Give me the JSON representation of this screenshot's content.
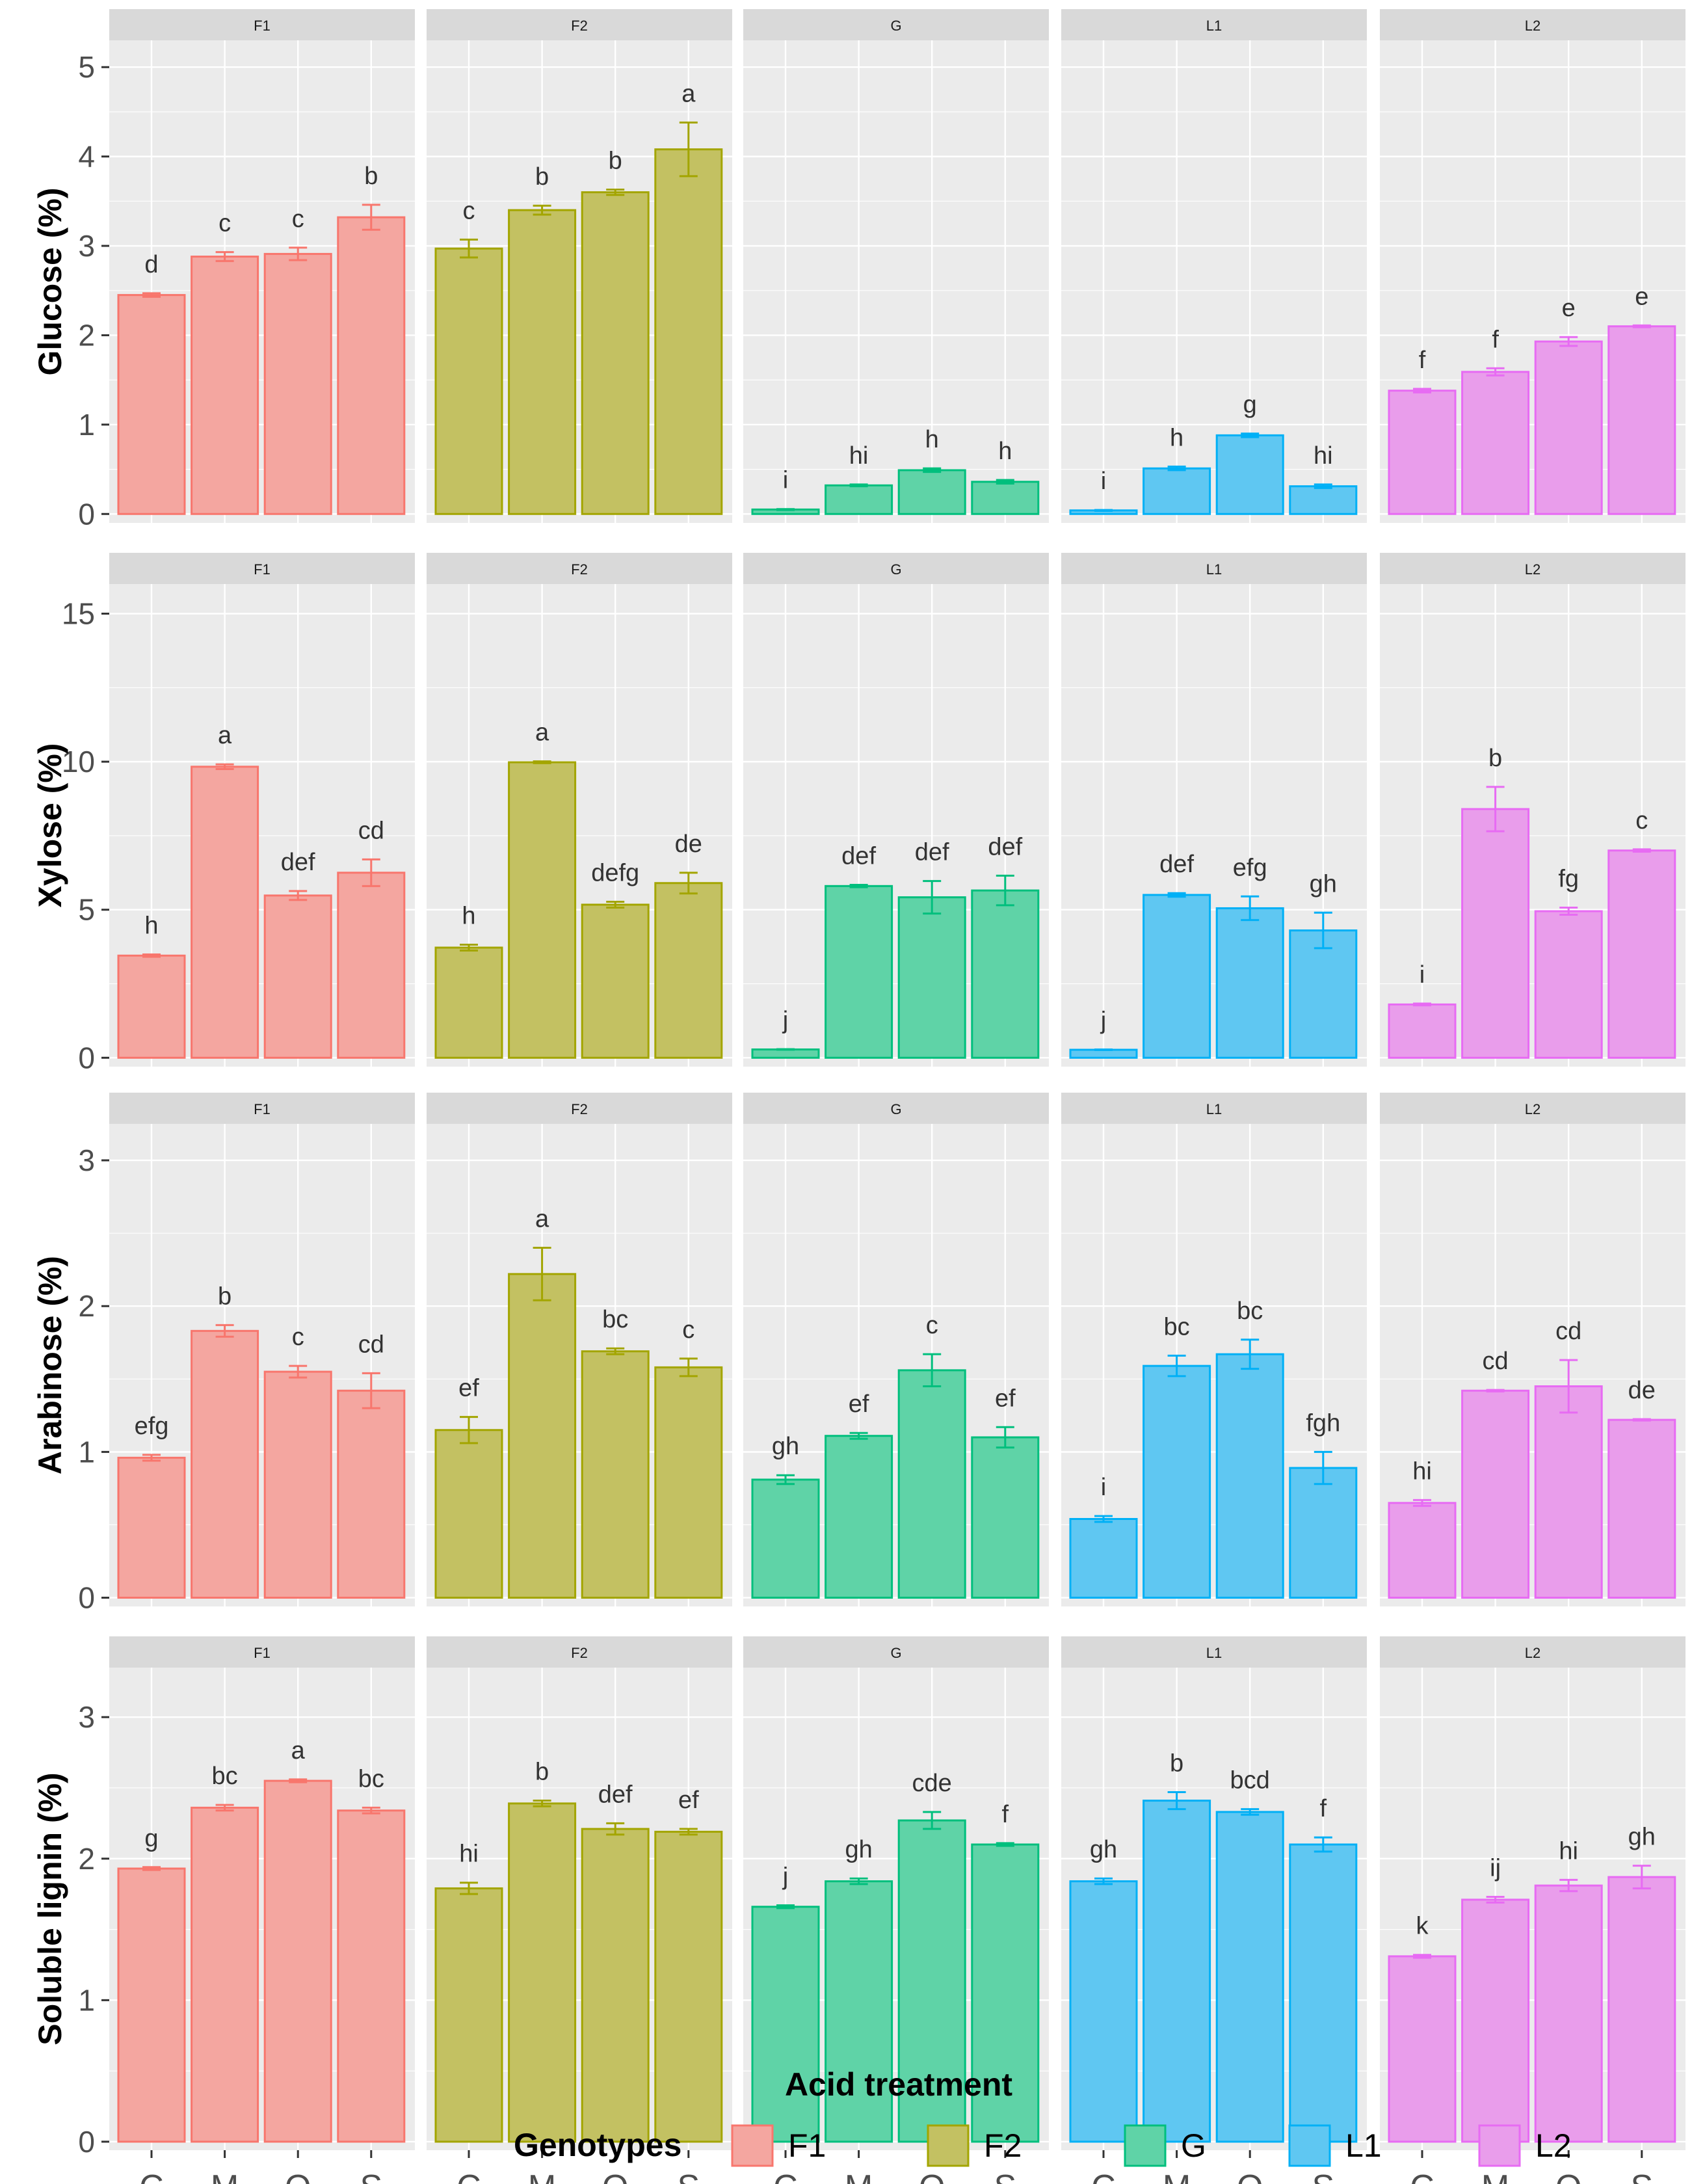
{
  "chart_data": {
    "type": "bar",
    "facet_layout": "rows = response variable, columns = genotype",
    "genotypes": [
      "F1",
      "F2",
      "G",
      "L1",
      "L2"
    ],
    "categories": [
      "C",
      "M",
      "O",
      "S"
    ],
    "xlabel": "Acid treatment",
    "colors": {
      "F1": {
        "fill": "#F4A6A0",
        "stroke": "#F8766D"
      },
      "F2": {
        "fill": "#C3C162",
        "stroke": "#A3A500"
      },
      "G": {
        "fill": "#5FD3A7",
        "stroke": "#00BF7D"
      },
      "L1": {
        "fill": "#5FC7F2",
        "stroke": "#00B0F6"
      },
      "L2": {
        "fill": "#E99DEB",
        "stroke": "#E76BF3"
      }
    },
    "panel_bg": "#EBEBEB",
    "strip_bg": "#D9D9D9",
    "legend": {
      "title": "Genotypes",
      "position": "bottom",
      "labels": [
        "F1",
        "F2",
        "G",
        "L1",
        "L2"
      ]
    },
    "rows": [
      {
        "ylabel": "Glucose (%)",
        "ylim": [
          -0.1,
          5.3
        ],
        "yticks": [
          0,
          1,
          2,
          3,
          4,
          5
        ],
        "series": [
          {
            "name": "F1",
            "values": [
              2.45,
              2.88,
              2.91,
              3.32
            ],
            "errors": [
              0.02,
              0.05,
              0.07,
              0.14
            ],
            "letters": [
              "d",
              "c",
              "c",
              "b"
            ]
          },
          {
            "name": "F2",
            "values": [
              2.97,
              3.4,
              3.6,
              4.08
            ],
            "errors": [
              0.1,
              0.05,
              0.03,
              0.3
            ],
            "letters": [
              "c",
              "b",
              "b",
              "a"
            ]
          },
          {
            "name": "G",
            "values": [
              0.05,
              0.32,
              0.49,
              0.36
            ],
            "errors": [
              0.005,
              0.01,
              0.02,
              0.02
            ],
            "letters": [
              "i",
              "hi",
              "h",
              "h"
            ]
          },
          {
            "name": "L1",
            "values": [
              0.04,
              0.51,
              0.88,
              0.31
            ],
            "errors": [
              0.005,
              0.02,
              0.02,
              0.02
            ],
            "letters": [
              "i",
              "h",
              "g",
              "hi"
            ]
          },
          {
            "name": "L2",
            "values": [
              1.38,
              1.59,
              1.93,
              2.1
            ],
            "errors": [
              0.02,
              0.04,
              0.05,
              0.01
            ],
            "letters": [
              "f",
              "f",
              "e",
              "e"
            ]
          }
        ]
      },
      {
        "ylabel": "Xylose (%)",
        "ylim": [
          -0.3,
          16.0
        ],
        "yticks": [
          0,
          5,
          10,
          15
        ],
        "series": [
          {
            "name": "F1",
            "values": [
              3.45,
              9.83,
              5.48,
              6.25
            ],
            "errors": [
              0.04,
              0.08,
              0.15,
              0.45
            ],
            "letters": [
              "h",
              "a",
              "def",
              "cd"
            ]
          },
          {
            "name": "F2",
            "values": [
              3.72,
              9.98,
              5.17,
              5.9
            ],
            "errors": [
              0.1,
              0.03,
              0.1,
              0.35
            ],
            "letters": [
              "h",
              "a",
              "defg",
              "de"
            ]
          },
          {
            "name": "G",
            "values": [
              0.28,
              5.8,
              5.42,
              5.65
            ],
            "errors": [
              0.01,
              0.04,
              0.55,
              0.5
            ],
            "letters": [
              "j",
              "def",
              "def",
              "def"
            ]
          },
          {
            "name": "L1",
            "values": [
              0.27,
              5.5,
              5.05,
              4.3
            ],
            "errors": [
              0.01,
              0.06,
              0.4,
              0.6
            ],
            "letters": [
              "j",
              "def",
              "efg",
              "gh"
            ]
          },
          {
            "name": "L2",
            "values": [
              1.8,
              8.4,
              4.95,
              7.0
            ],
            "errors": [
              0.03,
              0.75,
              0.12,
              0.04
            ],
            "letters": [
              "i",
              "b",
              "fg",
              "c"
            ]
          }
        ]
      },
      {
        "ylabel": "Arabinose (%)",
        "ylim": [
          -0.06,
          3.25
        ],
        "yticks": [
          0,
          1,
          2,
          3
        ],
        "series": [
          {
            "name": "F1",
            "values": [
              0.96,
              1.83,
              1.55,
              1.42
            ],
            "errors": [
              0.02,
              0.04,
              0.04,
              0.12
            ],
            "letters": [
              "efg",
              "b",
              "c",
              "cd"
            ]
          },
          {
            "name": "F2",
            "values": [
              1.15,
              2.22,
              1.69,
              1.58
            ],
            "errors": [
              0.09,
              0.18,
              0.02,
              0.06
            ],
            "letters": [
              "ef",
              "a",
              "bc",
              "c"
            ]
          },
          {
            "name": "G",
            "values": [
              0.81,
              1.11,
              1.56,
              1.1
            ],
            "errors": [
              0.03,
              0.02,
              0.11,
              0.07
            ],
            "letters": [
              "gh",
              "ef",
              "c",
              "ef"
            ]
          },
          {
            "name": "L1",
            "values": [
              0.54,
              1.59,
              1.67,
              0.89
            ],
            "errors": [
              0.02,
              0.07,
              0.1,
              0.11
            ],
            "letters": [
              "i",
              "bc",
              "bc",
              "fgh"
            ]
          },
          {
            "name": "L2",
            "values": [
              0.65,
              1.42,
              1.45,
              1.22
            ],
            "errors": [
              0.02,
              0.005,
              0.18,
              0.005
            ],
            "letters": [
              "hi",
              "cd",
              "cd",
              "de"
            ]
          }
        ]
      },
      {
        "ylabel": "Soluble lignin (%)",
        "ylim": [
          -0.06,
          3.35
        ],
        "yticks": [
          0,
          1,
          2,
          3
        ],
        "series": [
          {
            "name": "F1",
            "values": [
              1.93,
              2.36,
              2.55,
              2.34
            ],
            "errors": [
              0.01,
              0.02,
              0.01,
              0.02
            ],
            "letters": [
              "g",
              "bc",
              "a",
              "bc"
            ]
          },
          {
            "name": "F2",
            "values": [
              1.79,
              2.39,
              2.21,
              2.19
            ],
            "errors": [
              0.04,
              0.02,
              0.04,
              0.02
            ],
            "letters": [
              "hi",
              "b",
              "def",
              "ef"
            ]
          },
          {
            "name": "G",
            "values": [
              1.66,
              1.84,
              2.27,
              2.1
            ],
            "errors": [
              0.01,
              0.02,
              0.06,
              0.01
            ],
            "letters": [
              "j",
              "gh",
              "cde",
              "f"
            ]
          },
          {
            "name": "L1",
            "values": [
              1.84,
              2.41,
              2.33,
              2.1
            ],
            "errors": [
              0.02,
              0.06,
              0.02,
              0.05
            ],
            "letters": [
              "gh",
              "b",
              "bcd",
              "f"
            ]
          },
          {
            "name": "L2",
            "values": [
              1.31,
              1.71,
              1.81,
              1.87
            ],
            "errors": [
              0.01,
              0.02,
              0.04,
              0.08
            ],
            "letters": [
              "k",
              "ij",
              "hi",
              "gh"
            ]
          }
        ]
      }
    ]
  }
}
